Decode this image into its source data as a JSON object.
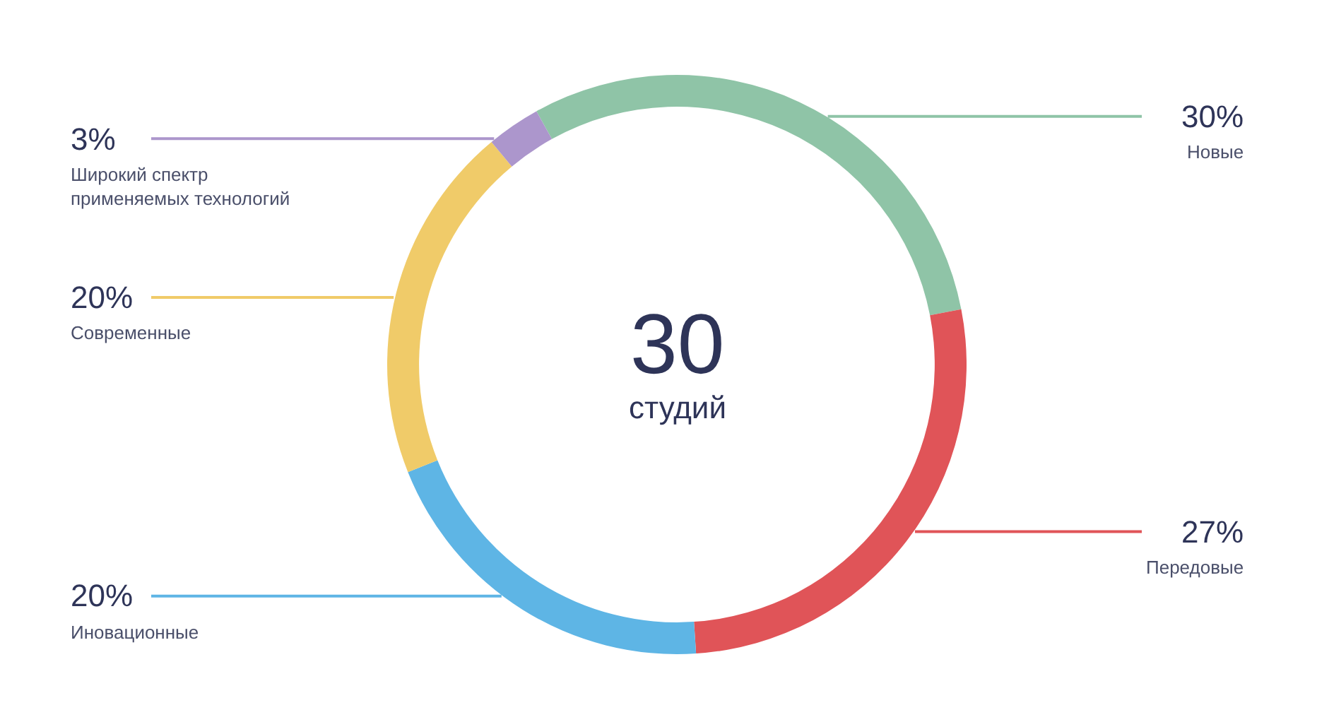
{
  "chart_data": {
    "type": "donut",
    "categories": [
      "Новые",
      "Передовые",
      "Иновационные",
      "Современные",
      "Широкий спектр\nприменяемых технологий"
    ],
    "values": [
      30,
      27,
      20,
      20,
      3
    ],
    "colors": [
      "#8fc4a7",
      "#e05458",
      "#5eb5e5",
      "#f0cb69",
      "#ac96cc"
    ],
    "value_labels": [
      "30%",
      "27%",
      "20%",
      "20%",
      "3%"
    ],
    "annotations": [
      "30",
      "студий"
    ]
  }
}
